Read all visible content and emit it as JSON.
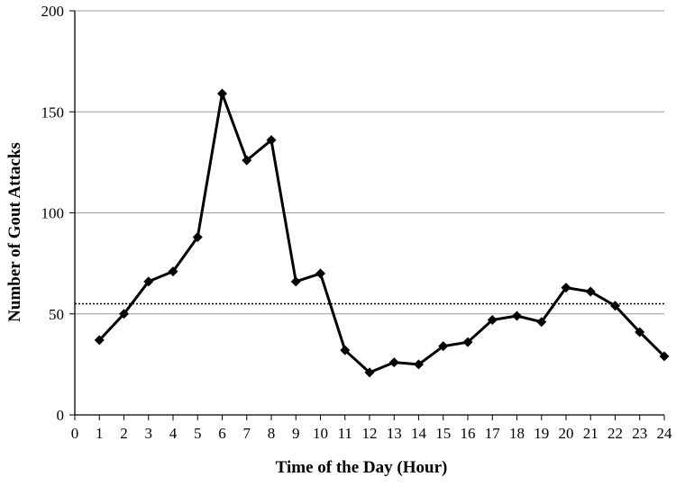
{
  "chart_data": {
    "type": "line",
    "title": "",
    "xlabel": "Time of the Day (Hour)",
    "ylabel": "Number of Gout Attacks",
    "xlim": [
      0,
      24
    ],
    "ylim": [
      0,
      200
    ],
    "x_ticks": [
      "0",
      "1",
      "2",
      "3",
      "4",
      "5",
      "6",
      "7",
      "8",
      "9",
      "10",
      "11",
      "12",
      "13",
      "14",
      "15",
      "16",
      "17",
      "18",
      "19",
      "20",
      "21",
      "22",
      "23",
      "24"
    ],
    "y_ticks": [
      "0",
      "50",
      "100",
      "150",
      "200"
    ],
    "grid": "horizontal",
    "legend": "none",
    "reference_line": {
      "value": 55,
      "style": "dotted"
    },
    "series": [
      {
        "marker": "diamond",
        "color": "#000000",
        "x": [
          1,
          2,
          3,
          4,
          5,
          6,
          7,
          8,
          9,
          10,
          11,
          12,
          13,
          14,
          15,
          16,
          17,
          18,
          19,
          20,
          21,
          22,
          23,
          24
        ],
        "y": [
          37,
          50,
          66,
          71,
          88,
          159,
          126,
          136,
          66,
          70,
          32,
          21,
          26,
          25,
          34,
          36,
          47,
          49,
          46,
          63,
          61,
          54,
          41,
          29
        ]
      }
    ]
  }
}
